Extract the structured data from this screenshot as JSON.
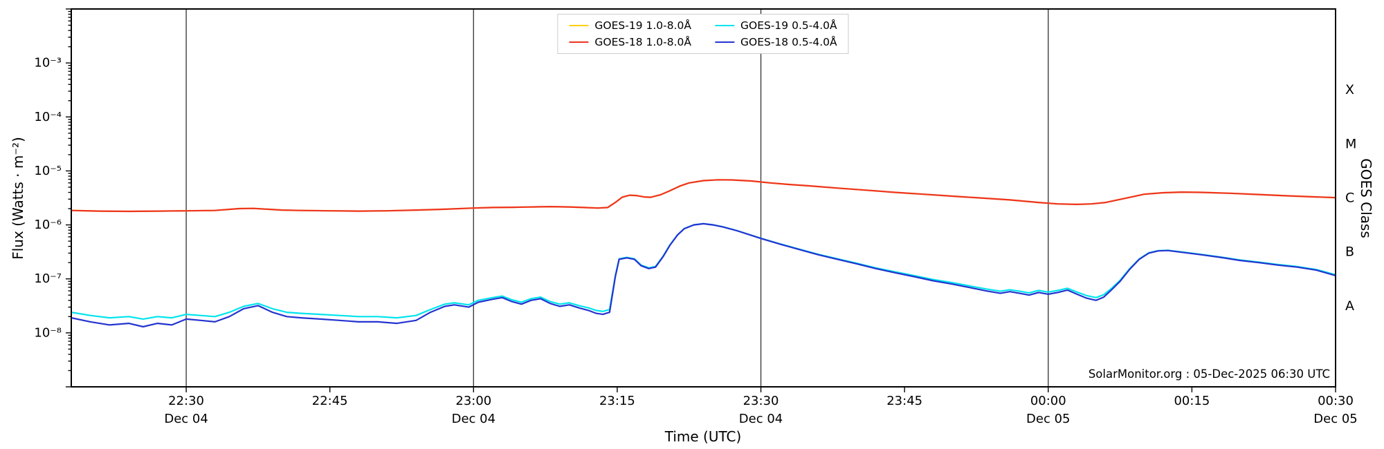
{
  "annotation": "SolarMonitor.org : 05-Dec-2025 06:30 UTC",
  "chart_data": {
    "type": "line",
    "title": "",
    "xlabel": "Time (UTC)",
    "ylabel": "Flux (Watts · m⁻²)",
    "ylabel_right": "GOES Class",
    "y_scale": "log",
    "y_range": [
      1e-09,
      0.01
    ],
    "x_unit": "minutes after 22:00 UTC on 04-Dec-2025",
    "x_range": [
      18,
      150
    ],
    "grid": "vertical-lines-at-30min",
    "legend_position": "top-center",
    "x_ticks": [
      {
        "t": 30,
        "label": "22:30",
        "date": "Dec 04",
        "line": true
      },
      {
        "t": 45,
        "label": "22:45",
        "date": "",
        "line": false
      },
      {
        "t": 60,
        "label": "23:00",
        "date": "Dec 04",
        "line": true
      },
      {
        "t": 75,
        "label": "23:15",
        "date": "",
        "line": false
      },
      {
        "t": 90,
        "label": "23:30",
        "date": "Dec 04",
        "line": true
      },
      {
        "t": 105,
        "label": "23:45",
        "date": "",
        "line": false
      },
      {
        "t": 120,
        "label": "00:00",
        "date": "Dec 05",
        "line": true
      },
      {
        "t": 135,
        "label": "00:15",
        "date": "",
        "line": false
      },
      {
        "t": 150,
        "label": "00:30",
        "date": "Dec 05",
        "line": false
      }
    ],
    "y_ticks": [
      {
        "exp": -3,
        "label": "10⁻³"
      },
      {
        "exp": -4,
        "label": "10⁻⁴"
      },
      {
        "exp": -5,
        "label": "10⁻⁵"
      },
      {
        "exp": -6,
        "label": "10⁻⁶"
      },
      {
        "exp": -7,
        "label": "10⁻⁷"
      },
      {
        "exp": -8,
        "label": "10⁻⁸"
      }
    ],
    "right_ticks": [
      {
        "label": "X",
        "log_center": -3.5
      },
      {
        "label": "M",
        "log_center": -4.5
      },
      {
        "label": "C",
        "log_center": -5.5
      },
      {
        "label": "B",
        "log_center": -6.5
      },
      {
        "label": "A",
        "log_center": -7.5
      }
    ],
    "series": [
      {
        "name": "GOES-19 1.0-8.0Å",
        "color": "#ffd000",
        "x": [
          18,
          21,
          24,
          27,
          30,
          33,
          35.5,
          37,
          38.5,
          40,
          42,
          45,
          48,
          51,
          54,
          57,
          60,
          62,
          64,
          66,
          68,
          70,
          71.5,
          73,
          74,
          74.8,
          75.5,
          76.3,
          77,
          77.8,
          78.5,
          79.5,
          80.5,
          81.5,
          82.5,
          84,
          85.5,
          87,
          89,
          91,
          93,
          95,
          98,
          101,
          104,
          107,
          110,
          113,
          116,
          119,
          121,
          123,
          124.5,
          126,
          128,
          130,
          132,
          134,
          136,
          139,
          142,
          145,
          148,
          150
        ],
        "y": [
          1.85e-06,
          1.8e-06,
          1.78e-06,
          1.8e-06,
          1.82e-06,
          1.85e-06,
          2e-06,
          2.02e-06,
          1.95e-06,
          1.88e-06,
          1.85e-06,
          1.82e-06,
          1.8e-06,
          1.82e-06,
          1.88e-06,
          1.95e-06,
          2.05e-06,
          2.1e-06,
          2.12e-06,
          2.15e-06,
          2.18e-06,
          2.15e-06,
          2.1e-06,
          2.05e-06,
          2.1e-06,
          2.6e-06,
          3.25e-06,
          3.55e-06,
          3.5e-06,
          3.3e-06,
          3.25e-06,
          3.6e-06,
          4.3e-06,
          5.2e-06,
          6e-06,
          6.6e-06,
          6.85e-06,
          6.8e-06,
          6.5e-06,
          6e-06,
          5.6e-06,
          5.3e-06,
          4.8e-06,
          4.4e-06,
          4e-06,
          3.7e-06,
          3.4e-06,
          3.15e-06,
          2.9e-06,
          2.6e-06,
          2.45e-06,
          2.4e-06,
          2.45e-06,
          2.6e-06,
          3.1e-06,
          3.7e-06,
          3.95e-06,
          4.05e-06,
          4e-06,
          3.85e-06,
          3.65e-06,
          3.45e-06,
          3.3e-06,
          3.2e-06
        ]
      },
      {
        "name": "GOES-18 1.0-8.0Å",
        "color": "#ee3322",
        "x": [
          18,
          21,
          24,
          27,
          30,
          33,
          35.5,
          37,
          38.5,
          40,
          42,
          45,
          48,
          51,
          54,
          57,
          60,
          62,
          64,
          66,
          68,
          70,
          71.5,
          73,
          74,
          74.8,
          75.5,
          76.3,
          77,
          77.8,
          78.5,
          79.5,
          80.5,
          81.5,
          82.5,
          84,
          85.5,
          87,
          89,
          91,
          93,
          95,
          98,
          101,
          104,
          107,
          110,
          113,
          116,
          119,
          121,
          123,
          124.5,
          126,
          128,
          130,
          132,
          134,
          136,
          139,
          142,
          145,
          148,
          150
        ],
        "y": [
          1.85e-06,
          1.8e-06,
          1.78e-06,
          1.8e-06,
          1.82e-06,
          1.85e-06,
          2e-06,
          2.02e-06,
          1.95e-06,
          1.88e-06,
          1.85e-06,
          1.82e-06,
          1.8e-06,
          1.82e-06,
          1.88e-06,
          1.95e-06,
          2.05e-06,
          2.1e-06,
          2.12e-06,
          2.15e-06,
          2.18e-06,
          2.15e-06,
          2.1e-06,
          2.05e-06,
          2.1e-06,
          2.6e-06,
          3.25e-06,
          3.55e-06,
          3.5e-06,
          3.3e-06,
          3.25e-06,
          3.6e-06,
          4.3e-06,
          5.2e-06,
          6e-06,
          6.6e-06,
          6.85e-06,
          6.8e-06,
          6.5e-06,
          6e-06,
          5.6e-06,
          5.3e-06,
          4.8e-06,
          4.4e-06,
          4e-06,
          3.7e-06,
          3.4e-06,
          3.15e-06,
          2.9e-06,
          2.6e-06,
          2.45e-06,
          2.4e-06,
          2.45e-06,
          2.6e-06,
          3.1e-06,
          3.7e-06,
          3.95e-06,
          4.05e-06,
          4e-06,
          3.85e-06,
          3.65e-06,
          3.45e-06,
          3.3e-06,
          3.2e-06
        ]
      },
      {
        "name": "GOES-19 0.5-4.0Å",
        "color": "#00e4ee",
        "x": [
          18,
          20,
          22,
          24,
          25.5,
          27,
          28.5,
          30,
          31.5,
          33,
          34.5,
          36,
          37.5,
          39,
          40.5,
          42,
          44,
          46,
          48,
          50,
          52,
          54,
          55.5,
          57,
          58,
          59.5,
          60.5,
          62,
          63,
          64,
          65,
          66,
          67,
          68,
          69,
          70,
          71,
          72,
          72.8,
          73.5,
          74.2,
          74.8,
          75.2,
          76,
          76.8,
          77.5,
          78.3,
          79,
          79.8,
          80.5,
          81.3,
          82,
          83,
          84,
          85,
          86,
          87.5,
          89,
          90,
          92,
          94,
          96,
          98,
          100,
          102,
          104,
          106,
          108,
          110,
          112,
          113.5,
          115,
          116,
          117,
          118,
          119,
          120,
          121,
          122,
          123,
          124,
          125,
          125.8,
          126.5,
          127.5,
          128.5,
          129.5,
          130.5,
          131.5,
          132.5,
          134,
          136,
          138,
          140,
          142,
          144,
          146,
          148,
          150
        ],
        "y": [
          2.4e-08,
          2.1e-08,
          1.9e-08,
          2e-08,
          1.8e-08,
          2e-08,
          1.9e-08,
          2.2e-08,
          2.1e-08,
          2e-08,
          2.4e-08,
          3.1e-08,
          3.5e-08,
          2.8e-08,
          2.4e-08,
          2.3e-08,
          2.2e-08,
          2.1e-08,
          2e-08,
          2e-08,
          1.9e-08,
          2.1e-08,
          2.7e-08,
          3.4e-08,
          3.6e-08,
          3.3e-08,
          4e-08,
          4.5e-08,
          4.8e-08,
          4.1e-08,
          3.7e-08,
          4.3e-08,
          4.6e-08,
          3.8e-08,
          3.4e-08,
          3.6e-08,
          3.2e-08,
          2.9e-08,
          2.6e-08,
          2.5e-08,
          2.7e-08,
          1.15e-07,
          2.35e-07,
          2.5e-07,
          2.35e-07,
          1.8e-07,
          1.6e-07,
          1.7e-07,
          2.65e-07,
          4.25e-07,
          6.55e-07,
          8.55e-07,
          1.005e-06,
          1.055e-06,
          1.005e-06,
          9.25e-07,
          7.85e-07,
          6.45e-07,
          5.65e-07,
          4.45e-07,
          3.55e-07,
          2.85e-07,
          2.35e-07,
          1.95e-07,
          1.6e-07,
          1.35e-07,
          1.15e-07,
          9.7e-08,
          8.5e-08,
          7.3e-08,
          6.5e-08,
          5.9e-08,
          6.3e-08,
          5.9e-08,
          5.5e-08,
          6.1e-08,
          5.7e-08,
          6.1e-08,
          6.7e-08,
          5.7e-08,
          4.9e-08,
          4.5e-08,
          5.1e-08,
          6.4e-08,
          9.4e-08,
          1.54e-07,
          2.34e-07,
          3.04e-07,
          3.34e-07,
          3.39e-07,
          3.14e-07,
          2.84e-07,
          2.54e-07,
          2.24e-07,
          2.04e-07,
          1.84e-07,
          1.69e-07,
          1.49e-07,
          1.19e-07
        ]
      },
      {
        "name": "GOES-18 0.5-4.0Å",
        "color": "#2433cf",
        "x": [
          18,
          20,
          22,
          24,
          25.5,
          27,
          28.5,
          30,
          31.5,
          33,
          34.5,
          36,
          37.5,
          39,
          40.5,
          42,
          44,
          46,
          48,
          50,
          52,
          54,
          55.5,
          57,
          58,
          59.5,
          60.5,
          62,
          63,
          64,
          65,
          66,
          67,
          68,
          69,
          70,
          71,
          72,
          72.8,
          73.5,
          74.2,
          74.8,
          75.2,
          76,
          76.8,
          77.5,
          78.3,
          79,
          79.8,
          80.5,
          81.3,
          82,
          83,
          84,
          85,
          86,
          87.5,
          89,
          90,
          92,
          94,
          96,
          98,
          100,
          102,
          104,
          106,
          108,
          110,
          112,
          113.5,
          115,
          116,
          117,
          118,
          119,
          120,
          121,
          122,
          123,
          124,
          125,
          125.8,
          126.5,
          127.5,
          128.5,
          129.5,
          130.5,
          131.5,
          132.5,
          134,
          136,
          138,
          140,
          142,
          144,
          146,
          148,
          150
        ],
        "y": [
          1.9e-08,
          1.6e-08,
          1.4e-08,
          1.5e-08,
          1.3e-08,
          1.5e-08,
          1.4e-08,
          1.8e-08,
          1.7e-08,
          1.6e-08,
          2e-08,
          2.8e-08,
          3.2e-08,
          2.4e-08,
          2e-08,
          1.9e-08,
          1.8e-08,
          1.7e-08,
          1.6e-08,
          1.6e-08,
          1.5e-08,
          1.7e-08,
          2.4e-08,
          3.1e-08,
          3.3e-08,
          3e-08,
          3.7e-08,
          4.2e-08,
          4.5e-08,
          3.8e-08,
          3.4e-08,
          4e-08,
          4.3e-08,
          3.5e-08,
          3.1e-08,
          3.3e-08,
          2.9e-08,
          2.6e-08,
          2.3e-08,
          2.2e-08,
          2.4e-08,
          1.1e-07,
          2.3e-07,
          2.45e-07,
          2.3e-07,
          1.75e-07,
          1.55e-07,
          1.65e-07,
          2.6e-07,
          4.2e-07,
          6.5e-07,
          8.5e-07,
          1e-06,
          1.05e-06,
          1e-06,
          9.2e-07,
          7.8e-07,
          6.4e-07,
          5.6e-07,
          4.4e-07,
          3.5e-07,
          2.8e-07,
          2.3e-07,
          1.9e-07,
          1.55e-07,
          1.3e-07,
          1.1e-07,
          9.2e-08,
          8e-08,
          6.8e-08,
          6e-08,
          5.4e-08,
          5.8e-08,
          5.4e-08,
          5e-08,
          5.6e-08,
          5.2e-08,
          5.6e-08,
          6.2e-08,
          5.2e-08,
          4.4e-08,
          4e-08,
          4.6e-08,
          6e-08,
          9e-08,
          1.5e-07,
          2.3e-07,
          3e-07,
          3.3e-07,
          3.35e-07,
          3.1e-07,
          2.8e-07,
          2.5e-07,
          2.2e-07,
          2e-07,
          1.8e-07,
          1.65e-07,
          1.45e-07,
          1.15e-07
        ]
      }
    ]
  }
}
